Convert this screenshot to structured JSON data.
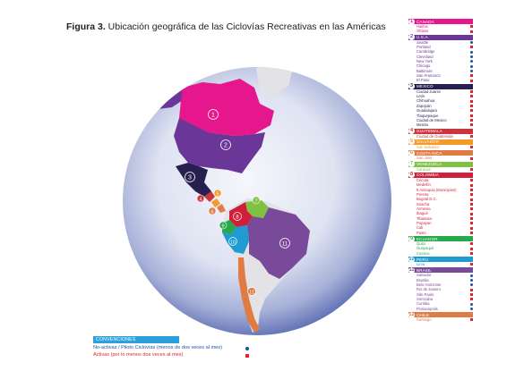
{
  "title": {
    "bold": "Figura 3.",
    "text": " Ubicación geográfica de las Ciclovías Recreativas en las Américas"
  },
  "colors": {
    "active": "#e4212c",
    "inactive": "#1f4fa3",
    "globe_center": "#f4f6fb",
    "globe_edge": "#5f71b5",
    "land_neutral": "#e3e3e6"
  },
  "legend": [
    {
      "num": "1",
      "name": "CANADA",
      "color": "#e6178c",
      "cities": [
        {
          "name": "Halifax",
          "status": "active"
        },
        {
          "name": "Ottawa",
          "status": "active"
        }
      ]
    },
    {
      "num": "2",
      "name": "U.S.A.",
      "color": "#6a3697",
      "cities": [
        {
          "name": "Seattle",
          "status": "inactive"
        },
        {
          "name": "Portland",
          "status": "active"
        },
        {
          "name": "Cambridge",
          "status": "inactive"
        },
        {
          "name": "Cleveland",
          "status": "inactive"
        },
        {
          "name": "New York",
          "status": "inactive"
        },
        {
          "name": "Chicago",
          "status": "inactive"
        },
        {
          "name": "Baltimore",
          "status": "inactive"
        },
        {
          "name": "San Francisco",
          "status": "active"
        },
        {
          "name": "El Paso",
          "status": "active"
        }
      ]
    },
    {
      "num": "3",
      "name": "MEXICO",
      "color": "#271f4f",
      "cities": [
        {
          "name": "Ciudad Juarez",
          "status": "active"
        },
        {
          "name": "León",
          "status": "active"
        },
        {
          "name": "Chihuahua",
          "status": "active"
        },
        {
          "name": "Zapopán",
          "status": "active"
        },
        {
          "name": "Guadalajara",
          "status": "active"
        },
        {
          "name": "Tlaquepaque",
          "status": "active"
        },
        {
          "name": "Ciudad de Mexico",
          "status": "active"
        },
        {
          "name": "Merida",
          "status": "active"
        }
      ]
    },
    {
      "num": "4",
      "name": "GUATEMALA",
      "color": "#c8373e",
      "cities": [
        {
          "name": "Ciudad de Guatemala",
          "status": "active"
        }
      ]
    },
    {
      "num": "5",
      "name": "SALVADOR",
      "color": "#f39a27",
      "cities": [
        {
          "name": "San Salvador",
          "status": "active"
        }
      ]
    },
    {
      "num": "6",
      "name": "COSTA RICA",
      "color": "#e07b45",
      "cities": [
        {
          "name": "San José",
          "status": "active"
        }
      ]
    },
    {
      "num": "7",
      "name": "VENEZUELA",
      "color": "#7fc242",
      "cities": [
        {
          "name": "Caracas",
          "status": "active"
        }
      ]
    },
    {
      "num": "8",
      "name": "COLOMBIA",
      "color": "#d01f3b",
      "cities": [
        {
          "name": "Cúcuta",
          "status": "active"
        },
        {
          "name": "Medellín",
          "status": "active"
        },
        {
          "name": "5 Antioquia (Municipios)",
          "status": "active"
        },
        {
          "name": "Pereira",
          "status": "active"
        },
        {
          "name": "Bogotá D.C.",
          "status": "active"
        },
        {
          "name": "Soacha",
          "status": "active"
        },
        {
          "name": "Armenia",
          "status": "active"
        },
        {
          "name": "Ibagué",
          "status": "active"
        },
        {
          "name": "Tibasosa",
          "status": "active"
        },
        {
          "name": "Popayan",
          "status": "active"
        },
        {
          "name": "Cali",
          "status": "active"
        },
        {
          "name": "Pasto",
          "status": "active"
        }
      ]
    },
    {
      "num": "9",
      "name": "ECUADOR",
      "color": "#27a84a",
      "cities": [
        {
          "name": "Quito",
          "status": "active"
        },
        {
          "name": "Guayaquil",
          "status": "active"
        },
        {
          "name": "Cuenca",
          "status": "active"
        }
      ]
    },
    {
      "num": "10",
      "name": "PERU",
      "color": "#1f9bd3",
      "cities": [
        {
          "name": "Lima",
          "status": "active"
        }
      ]
    },
    {
      "num": "11",
      "name": "BRASIL",
      "color": "#7a4a9a",
      "cities": [
        {
          "name": "Salvador",
          "status": "inactive"
        },
        {
          "name": "Brasilia",
          "status": "inactive"
        },
        {
          "name": "Belo Horizonte",
          "status": "inactive"
        },
        {
          "name": "Rio de Janeiro",
          "status": "active"
        },
        {
          "name": "São Paulo",
          "status": "active"
        },
        {
          "name": "Sorocaba",
          "status": "active"
        },
        {
          "name": "Curitiba",
          "status": "inactive"
        },
        {
          "name": "Florianopolis",
          "status": "inactive"
        }
      ]
    },
    {
      "num": "12",
      "name": "CHILE",
      "color": "#e07b45",
      "cities": [
        {
          "name": "Santiago",
          "status": "active"
        }
      ]
    }
  ],
  "conventions": {
    "header": "CONVENCIONES",
    "inactive_label": "No-activas / Piloto Ciclovías (menos de dos veces al mes)",
    "active_label": "Activas (por lo menos dos veces al mes)"
  }
}
